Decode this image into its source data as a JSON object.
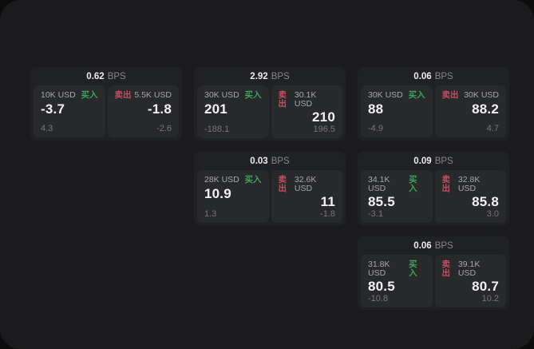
{
  "unit_label": "BPS",
  "buy_label": "买入",
  "sell_label": "卖出",
  "colors": {
    "buy": "#3da360",
    "sell": "#c44f63",
    "canvas_bg": "#1b1b1d",
    "card_bg": "#202123",
    "panel_bg": "#28292b"
  },
  "cards": [
    {
      "bps": "0.62",
      "col": 1,
      "row": 1,
      "buy": {
        "amount": "10K USD",
        "value": "-3.7",
        "delta": "4.3"
      },
      "sell": {
        "amount": "5.5K USD",
        "value": "-1.8",
        "delta": "-2.6"
      }
    },
    {
      "bps": "2.92",
      "col": 2,
      "row": 1,
      "buy": {
        "amount": "30K USD",
        "value": "201",
        "delta": "-188.1"
      },
      "sell": {
        "amount": "30.1K USD",
        "value": "210",
        "delta": "196.5"
      }
    },
    {
      "bps": "0.06",
      "col": 3,
      "row": 1,
      "buy": {
        "amount": "30K USD",
        "value": "88",
        "delta": "-4.9"
      },
      "sell": {
        "amount": "30K USD",
        "value": "88.2",
        "delta": "4.7"
      }
    },
    {
      "bps": "0.03",
      "col": 2,
      "row": 2,
      "buy": {
        "amount": "28K USD",
        "value": "10.9",
        "delta": "1.3"
      },
      "sell": {
        "amount": "32.6K USD",
        "value": "11",
        "delta": "-1.8"
      }
    },
    {
      "bps": "0.09",
      "col": 3,
      "row": 2,
      "buy": {
        "amount": "34.1K USD",
        "value": "85.5",
        "delta": "-3.1"
      },
      "sell": {
        "amount": "32.8K USD",
        "value": "85.8",
        "delta": "3.0"
      }
    },
    {
      "bps": "0.06",
      "col": 3,
      "row": 3,
      "buy": {
        "amount": "31.8K USD",
        "value": "80.5",
        "delta": "-10.8"
      },
      "sell": {
        "amount": "39.1K USD",
        "value": "80.7",
        "delta": "10.2"
      }
    }
  ]
}
